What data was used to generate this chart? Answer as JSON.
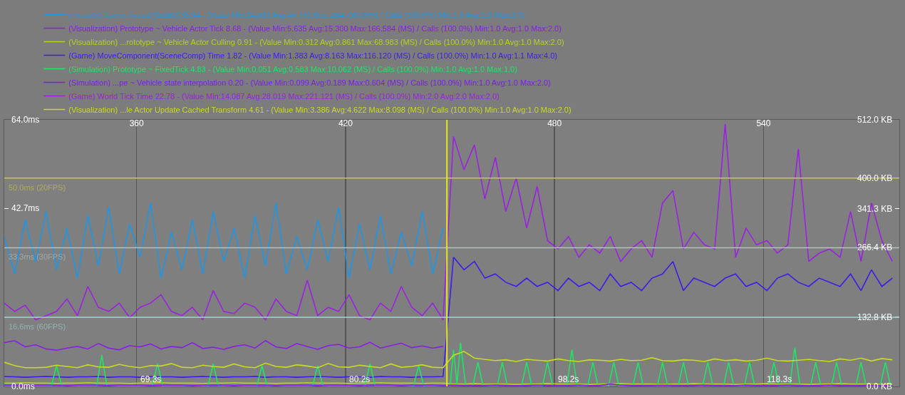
{
  "chart_data": {
    "type": "line",
    "legend": "top left",
    "grid": "x",
    "x": [
      322,
      325,
      328,
      331,
      334,
      337,
      340,
      343,
      346,
      349,
      352,
      355,
      358,
      361,
      364,
      367,
      370,
      373,
      376,
      379,
      382,
      385,
      388,
      391,
      394,
      397,
      400,
      403,
      406,
      409,
      412,
      415,
      418,
      421,
      424,
      427,
      430,
      433,
      436,
      439,
      442,
      445,
      448,
      451,
      454,
      457,
      460,
      463,
      466,
      469,
      472,
      475,
      478,
      481,
      484,
      487,
      490,
      493,
      496,
      499,
      502,
      505,
      508,
      511,
      514,
      517,
      520,
      523,
      526,
      529,
      532,
      535,
      538,
      541,
      544,
      547,
      550,
      553,
      556,
      559,
      562,
      565,
      568,
      571,
      574,
      577
    ],
    "xlim": [
      322,
      579
    ],
    "xticks": [
      360,
      420,
      480,
      540
    ],
    "annotations": [
      "69.3s",
      "80.2s",
      "98.2s",
      "118.3s"
    ],
    "ylim": [
      0,
      64
    ],
    "yticks": [
      {
        "value": 0,
        "label": "0.0ms"
      },
      {
        "value": 42.7,
        "label": "42.7ms"
      },
      {
        "value": 64,
        "label": "64.0ms"
      }
    ],
    "y2lim": [
      0,
      512
    ],
    "y2ticks": [
      {
        "value": 0,
        "label": "0.0 KB"
      },
      {
        "value": 132.8,
        "label": "132.8 KB"
      },
      {
        "value": 266.4,
        "label": "266.4 KB"
      },
      {
        "value": 341.3,
        "label": "341.3 KB"
      },
      {
        "value": 400,
        "label": "400.0 KB"
      },
      {
        "value": 512,
        "label": "512.0 KB"
      }
    ],
    "ref_lines": [
      {
        "axis": "y",
        "value": 50,
        "label": "50.0ms (20FPS)",
        "color": "#c8cc3c"
      },
      {
        "axis": "y",
        "value": 33.3,
        "label": "33.3ms (30FPS)",
        "color": "#b4c4bc"
      },
      {
        "axis": "y",
        "value": 16.6,
        "label": "16.6ms (60FPS)",
        "color": "#a0d4cc"
      },
      {
        "axis": "x",
        "value": 449.1,
        "color": "#e6e61e"
      }
    ],
    "series": [
      {
        "name": "(Threads) GameThread [0x38c] 35.94 - (Value Min:24.863 Avg:45.731 Max:284.736 (MS) / Calls (100.0%) Min:1.0 Avg:1.0 Max:1.0)",
        "color": "#1e96e6",
        "values": [
          36,
          27,
          40,
          30,
          42,
          28,
          38,
          26,
          41,
          29,
          43,
          27,
          39,
          31,
          44,
          26,
          37,
          28,
          40,
          27,
          42,
          30,
          38,
          26,
          41,
          29,
          44,
          27,
          36,
          28,
          40,
          30,
          43,
          26,
          39,
          28,
          41,
          27,
          37,
          29,
          42,
          27,
          38,
          null,
          null,
          null,
          null,
          null,
          null,
          null,
          null,
          null,
          null,
          null,
          null,
          null,
          null,
          null,
          null,
          null,
          null,
          null,
          null,
          null,
          null,
          null,
          null,
          null,
          null,
          null,
          null,
          null,
          null,
          null,
          null,
          null,
          null,
          null,
          null,
          null,
          null,
          null,
          null,
          null,
          null,
          null
        ]
      },
      {
        "name": "(Visualization) Prototype ~ Vehicle Actor Tick 8.68 - (Value Min:5.635 Avg:15.300 Max:166.584 (MS) / Calls (100.0%) Min:1.0 Avg:1.0 Max:2.0)",
        "color": "#8a1ee6",
        "values": [
          10.5,
          11,
          9.5,
          10,
          9,
          8.7,
          9.2,
          9.6,
          9,
          10.3,
          9.2,
          8.8,
          9.8,
          9.5,
          10.2,
          9,
          9.6,
          9.3,
          10.5,
          9.1,
          9.4,
          8.9,
          9.6,
          10,
          9.2,
          11,
          9.5,
          9.1,
          10.3,
          9.6,
          8.9,
          9.8,
          10.1,
          9.2,
          9.5,
          10.6,
          9.2,
          9.8,
          10.4,
          9.3,
          9.7,
          9.2,
          9.6,
          null,
          null,
          null,
          null,
          null,
          null,
          null,
          null,
          null,
          null,
          null,
          null,
          null,
          null,
          null,
          null,
          null,
          null,
          null,
          null,
          null,
          null,
          null,
          null,
          null,
          null,
          null,
          null,
          null,
          null,
          null,
          null,
          null,
          null,
          null,
          null,
          null,
          null,
          null,
          null,
          null,
          null,
          null
        ]
      },
      {
        "name": "(Visualization) ...rototype ~ Vehicle Actor Culling 0.91 - (Value Min:0.312 Avg:0.861 Max:68.983 (MS) / Calls (100.0%) Min:1.0 Avg:1.0 Max:2.0)",
        "color": "#b4d21e",
        "values": [
          0.8,
          0.8,
          0.9,
          0.8,
          0.8,
          0.7,
          0.8,
          0.8,
          0.9,
          0.8,
          0.8,
          0.8,
          0.7,
          0.8,
          0.8,
          0.9,
          0.8,
          0.8,
          0.8,
          0.7,
          0.8,
          0.8,
          0.9,
          0.8,
          0.8,
          0.8,
          0.7,
          0.8,
          0.8,
          0.9,
          0.8,
          0.8,
          0.8,
          0.7,
          0.8,
          0.8,
          0.9,
          0.8,
          0.8,
          0.8,
          0.7,
          0.8,
          0.8,
          0.6,
          0.6,
          0.7,
          0.6,
          0.6,
          0.6,
          0.5,
          0.6,
          0.6,
          0.7,
          0.6,
          0.6,
          0.6,
          0.5,
          0.6,
          0.6,
          0.7,
          0.6,
          0.6,
          0.6,
          0.5,
          0.6,
          0.6,
          0.7,
          0.6,
          0.6,
          0.6,
          0.5,
          0.6,
          0.6,
          0.7,
          0.6,
          0.6,
          0.6,
          0.5,
          0.6,
          0.6,
          0.7,
          0.6,
          0.6,
          0.6,
          0.5,
          0.6
        ]
      },
      {
        "name": "(Game) MoveComponent(SceneComp) Time 1.82 - (Value Min:1.383 Avg:8.163 Max:116.120 (MS) / Calls (100.0%) Min:1.0 Avg:1.1 Max:4.0)",
        "color": "#3c1ee6",
        "values": [
          2.4,
          2.3,
          2.2,
          2.3,
          2.4,
          2.3,
          2.2,
          2.3,
          2.3,
          2.4,
          2.2,
          2.3,
          2.3,
          2.2,
          2.4,
          2.3,
          2.3,
          2.2,
          2.3,
          2.4,
          2.3,
          2.2,
          2.3,
          2.3,
          2.4,
          2.2,
          2.3,
          2.3,
          2.2,
          2.3,
          2.4,
          2.3,
          2.2,
          2.3,
          2.3,
          2.2,
          2.4,
          2.3,
          2.3,
          2.2,
          2.3,
          2.3,
          2.4,
          31,
          28,
          30,
          26,
          27,
          25,
          24,
          26,
          24,
          25,
          23,
          26,
          24,
          25,
          23,
          27,
          24,
          25,
          23,
          26,
          27,
          30,
          23,
          26,
          25,
          24,
          26,
          27,
          24,
          25,
          23,
          26,
          27,
          25,
          24,
          26,
          25,
          24,
          27,
          23,
          28,
          24,
          26
        ]
      },
      {
        "name": "(Simulation) Prototype ~ FixedTick 4.83 - (Value Min:0.051 Avg:0.583 Max:10.062 (MS) / Calls (100.0%) Min:1.0 Avg:1.0 Max:1.0)",
        "color": "#1ee664",
        "x": [
          322,
          335.5,
          337,
          338.5,
          348.5,
          350,
          351.5,
          364.5,
          366,
          367.5,
          380.5,
          382,
          383.5,
          394.5,
          396,
          397.5,
          410.5,
          412,
          413.5,
          425.5,
          427,
          428.5,
          439.5,
          441,
          442.5,
          450,
          451,
          452,
          453,
          454.5,
          456.5,
          458,
          459.5,
          463.5,
          465,
          466.5,
          470.5,
          472,
          473.5,
          476.5,
          478,
          479.5,
          483.5,
          485,
          486.5,
          489.5,
          491,
          492.5,
          495.5,
          497,
          498.5,
          502.5,
          504,
          505.5,
          509.5,
          511,
          512.5,
          515.5,
          517,
          518.5,
          522.5,
          524,
          525.5,
          528.5,
          530,
          531.5,
          534.5,
          536,
          537.5,
          541.5,
          543,
          544.5,
          547.5,
          549,
          550.5,
          553.5,
          555,
          556.5,
          559.5,
          561,
          562.5,
          566.5,
          568,
          569.5,
          573.5,
          575,
          576.5,
          577
        ],
        "values": [
          0,
          0,
          5,
          0,
          0,
          7.5,
          0,
          0,
          5.5,
          0,
          0,
          5.5,
          0,
          0,
          5,
          0,
          0,
          5,
          0,
          0,
          5.5,
          0,
          0,
          5,
          0,
          0,
          8.8,
          0.5,
          10.5,
          0,
          0,
          5.8,
          0,
          0,
          5.8,
          0,
          0,
          5.8,
          0,
          0,
          5.8,
          0,
          0,
          8.8,
          0,
          0,
          5.8,
          0,
          0,
          5.8,
          0,
          0,
          5.8,
          0,
          0,
          5.8,
          0,
          0,
          5.8,
          0,
          0,
          5.8,
          0,
          0,
          5.8,
          0,
          0,
          5.8,
          0,
          0,
          5.8,
          0,
          0,
          9.3,
          0,
          0,
          5.8,
          0,
          0,
          5.8,
          0,
          0,
          5.8,
          0,
          0,
          5.8,
          0,
          0
        ]
      },
      {
        "name": "(Simulation) ...pe ~ Vehicle state interpolation 0.20 - (Value Min:0.099 Avg:0.189 Max:0.604 (MS) / Calls (100.0%) Min:1.0 Avg:1.0 Max:2.0)",
        "color": "#7a1ee6",
        "values": [
          0.3,
          0.3,
          0.2,
          0.3,
          0.3,
          0.3,
          0.2,
          0.3,
          0.3,
          0.3,
          0.2,
          0.3,
          0.3,
          0.3,
          0.2,
          0.3,
          0.3,
          0.3,
          0.2,
          0.3,
          0.3,
          0.3,
          0.2,
          0.3,
          0.3,
          0.3,
          0.2,
          0.3,
          0.3,
          0.3,
          0.2,
          0.3,
          0.3,
          0.3,
          0.2,
          0.3,
          0.3,
          0.3,
          0.2,
          0.3,
          0.3,
          0.3,
          0.2,
          0.3,
          0.2,
          0.2,
          0.2,
          0.3,
          0.2,
          0.2,
          0.2,
          0.3,
          0.2,
          0.2,
          0.2,
          0.3,
          0.2,
          0.2,
          0.6,
          0.3,
          0.2,
          0.2,
          0.2,
          0.3,
          0.2,
          0.2,
          0.2,
          0.3,
          0.2,
          0.2,
          0.2,
          0.3,
          0.2,
          0.2,
          0.2,
          0.3,
          0.2,
          0.2,
          0.2,
          0.3,
          0.2,
          0.2,
          0.2,
          0.3,
          0.2,
          0.2
        ]
      },
      {
        "name": "(Game) World Tick Time 22.78 - (Value Min:14.087 Avg:28.019 Max:221.121 (MS) / Calls (100.0%) Min:2.0 Avg:2.0 Max:2.0)",
        "color": "#9a22e0",
        "values": [
          20,
          18,
          19.5,
          16,
          17,
          18,
          21,
          17,
          24,
          19,
          18,
          20,
          16.5,
          19,
          20,
          22,
          18,
          17,
          19,
          16,
          23,
          18,
          17.5,
          20,
          19,
          16,
          21,
          18,
          17,
          25.5,
          17,
          19,
          18,
          22,
          17,
          16,
          20,
          18,
          24,
          19,
          17,
          20,
          16,
          60,
          52,
          58,
          45,
          55,
          42,
          50,
          38,
          48,
          35,
          33,
          36,
          31,
          34,
          32,
          36,
          30,
          33,
          35,
          31,
          44,
          47,
          33,
          37,
          34,
          33,
          63,
          31,
          38,
          34,
          35,
          32,
          34,
          57,
          30,
          32,
          33,
          31,
          42,
          30,
          44,
          35,
          30
        ]
      },
      {
        "name": "(Visualization) ...le Actor Update Cached Transform 4.61 - (Value Min:3.386 Avg:4.622 Max:8.098 (MS) / Calls (100.0%) Min:1.0 Avg:1.0 Max:2.0)",
        "color": "#c8dc1e",
        "values": [
          5.8,
          5,
          4.5,
          4.5,
          4.6,
          5.1,
          4.8,
          4.5,
          5.2,
          4.7,
          4.6,
          5.3,
          4.8,
          4.5,
          5,
          4.9,
          5.5,
          4.6,
          4.5,
          5.1,
          4.8,
          4.6,
          5.4,
          4.7,
          4.5,
          5.6,
          4.8,
          4.6,
          5.2,
          4.9,
          4.5,
          5.5,
          4.7,
          4.6,
          5.1,
          4.8,
          4.5,
          5.4,
          4.6,
          4.8,
          5.2,
          4.6,
          4.5,
          7.5,
          8.4,
          6.8,
          6.5,
          6.2,
          6.4,
          6,
          6.5,
          6.3,
          6.1,
          6.6,
          6.2,
          6,
          6.4,
          6.3,
          6.1,
          6.5,
          6.2,
          6.3,
          6.9,
          6.2,
          6.1,
          6.4,
          6.3,
          6,
          6.6,
          6.2,
          6.4,
          6.1,
          6.3,
          6.8,
          6.2,
          6.1,
          6.3,
          6.5,
          6.2,
          6,
          6.6,
          6.3,
          6.8,
          6.1,
          6.7,
          6.4
        ]
      }
    ]
  }
}
